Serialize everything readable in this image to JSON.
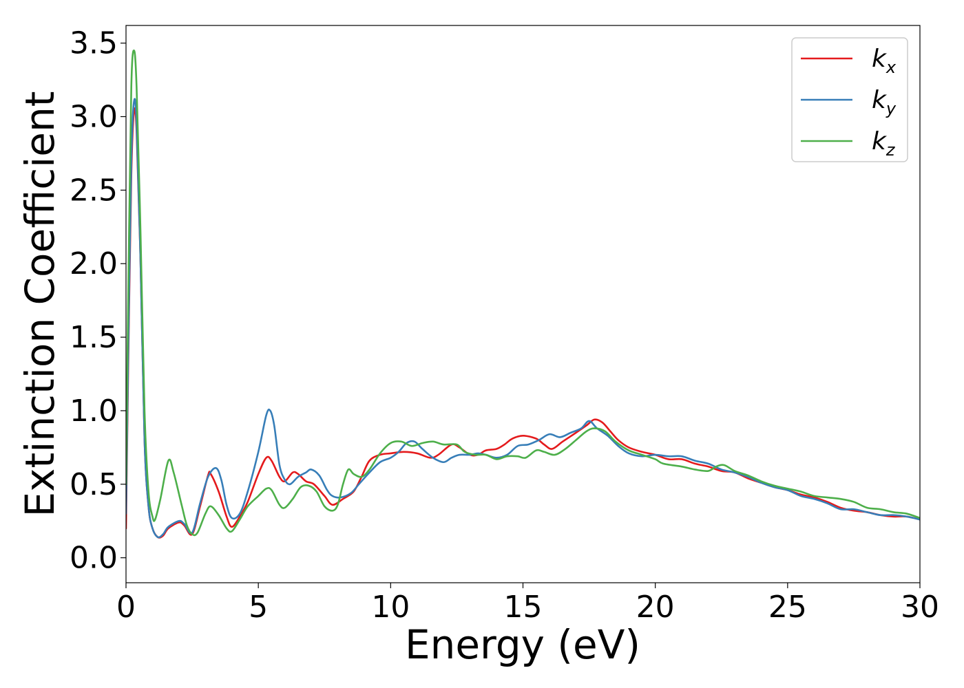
{
  "chart_data": {
    "type": "line",
    "title": "",
    "xlabel": "Energy (eV)",
    "ylabel": "Extinction Coefficient",
    "xlim": [
      0,
      30
    ],
    "ylim": [
      -0.17,
      3.62
    ],
    "xticks": [
      0,
      5,
      10,
      15,
      20,
      25,
      30
    ],
    "xtick_labels": [
      "0",
      "5",
      "10",
      "15",
      "20",
      "25",
      "30"
    ],
    "yticks": [
      0.0,
      0.5,
      1.0,
      1.5,
      2.0,
      2.5,
      3.0,
      3.5
    ],
    "ytick_labels": [
      "0.0",
      "0.5",
      "1.0",
      "1.5",
      "2.0",
      "2.5",
      "3.0",
      "3.5"
    ],
    "grid": false,
    "legend_position": "top-right",
    "series": [
      {
        "name": "k",
        "subscript": "x",
        "color": "#e41a1c",
        "points": [
          [
            0,
            0.2
          ],
          [
            0.1,
            1.5
          ],
          [
            0.2,
            2.6
          ],
          [
            0.3,
            3.03
          ],
          [
            0.4,
            2.9
          ],
          [
            0.55,
            2.0
          ],
          [
            0.7,
            0.8
          ],
          [
            0.85,
            0.35
          ],
          [
            1.0,
            0.2
          ],
          [
            1.2,
            0.14
          ],
          [
            1.4,
            0.15
          ],
          [
            1.6,
            0.2
          ],
          [
            2.0,
            0.24
          ],
          [
            2.2,
            0.22
          ],
          [
            2.5,
            0.16
          ],
          [
            2.8,
            0.35
          ],
          [
            3.1,
            0.56
          ],
          [
            3.2,
            0.57
          ],
          [
            3.5,
            0.45
          ],
          [
            3.8,
            0.28
          ],
          [
            4.0,
            0.21
          ],
          [
            4.3,
            0.28
          ],
          [
            4.6,
            0.38
          ],
          [
            5.0,
            0.57
          ],
          [
            5.3,
            0.68
          ],
          [
            5.5,
            0.66
          ],
          [
            5.8,
            0.55
          ],
          [
            6.0,
            0.52
          ],
          [
            6.3,
            0.58
          ],
          [
            6.5,
            0.57
          ],
          [
            6.8,
            0.52
          ],
          [
            7.1,
            0.5
          ],
          [
            7.5,
            0.42
          ],
          [
            7.8,
            0.36
          ],
          [
            8.2,
            0.4
          ],
          [
            8.6,
            0.45
          ],
          [
            8.9,
            0.55
          ],
          [
            9.2,
            0.66
          ],
          [
            9.6,
            0.7
          ],
          [
            10.0,
            0.71
          ],
          [
            10.5,
            0.72
          ],
          [
            11.0,
            0.71
          ],
          [
            11.5,
            0.68
          ],
          [
            11.8,
            0.7
          ],
          [
            12.3,
            0.77
          ],
          [
            12.6,
            0.75
          ],
          [
            13.0,
            0.7
          ],
          [
            13.3,
            0.7
          ],
          [
            13.6,
            0.73
          ],
          [
            14.0,
            0.74
          ],
          [
            14.3,
            0.77
          ],
          [
            14.6,
            0.81
          ],
          [
            15.0,
            0.83
          ],
          [
            15.5,
            0.81
          ],
          [
            15.8,
            0.77
          ],
          [
            16.1,
            0.74
          ],
          [
            16.5,
            0.79
          ],
          [
            17.0,
            0.85
          ],
          [
            17.4,
            0.9
          ],
          [
            17.7,
            0.94
          ],
          [
            18.0,
            0.92
          ],
          [
            18.3,
            0.86
          ],
          [
            18.6,
            0.8
          ],
          [
            19.0,
            0.75
          ],
          [
            19.5,
            0.72
          ],
          [
            20.0,
            0.7
          ],
          [
            20.5,
            0.67
          ],
          [
            21.0,
            0.67
          ],
          [
            21.5,
            0.64
          ],
          [
            22.0,
            0.62
          ],
          [
            22.5,
            0.59
          ],
          [
            23.0,
            0.58
          ],
          [
            23.5,
            0.54
          ],
          [
            24.0,
            0.51
          ],
          [
            24.5,
            0.48
          ],
          [
            25.0,
            0.46
          ],
          [
            25.5,
            0.43
          ],
          [
            26.0,
            0.41
          ],
          [
            26.5,
            0.38
          ],
          [
            27.0,
            0.34
          ],
          [
            27.5,
            0.32
          ],
          [
            28.0,
            0.31
          ],
          [
            28.5,
            0.29
          ],
          [
            29.0,
            0.28
          ],
          [
            29.5,
            0.28
          ],
          [
            30.0,
            0.26
          ]
        ]
      },
      {
        "name": "k",
        "subscript": "y",
        "color": "#377eb8",
        "points": [
          [
            0,
            0.3
          ],
          [
            0.1,
            1.6
          ],
          [
            0.2,
            2.7
          ],
          [
            0.3,
            3.1
          ],
          [
            0.4,
            2.95
          ],
          [
            0.55,
            2.0
          ],
          [
            0.7,
            0.8
          ],
          [
            0.85,
            0.35
          ],
          [
            1.0,
            0.2
          ],
          [
            1.2,
            0.14
          ],
          [
            1.4,
            0.16
          ],
          [
            1.6,
            0.21
          ],
          [
            2.0,
            0.25
          ],
          [
            2.2,
            0.23
          ],
          [
            2.5,
            0.17
          ],
          [
            2.8,
            0.37
          ],
          [
            3.1,
            0.55
          ],
          [
            3.4,
            0.61
          ],
          [
            3.6,
            0.53
          ],
          [
            3.8,
            0.36
          ],
          [
            4.0,
            0.27
          ],
          [
            4.3,
            0.3
          ],
          [
            4.6,
            0.45
          ],
          [
            5.0,
            0.72
          ],
          [
            5.3,
            0.97
          ],
          [
            5.45,
            1.0
          ],
          [
            5.6,
            0.9
          ],
          [
            5.8,
            0.63
          ],
          [
            6.0,
            0.53
          ],
          [
            6.2,
            0.5
          ],
          [
            6.5,
            0.55
          ],
          [
            6.8,
            0.58
          ],
          [
            7.0,
            0.6
          ],
          [
            7.3,
            0.56
          ],
          [
            7.6,
            0.46
          ],
          [
            7.8,
            0.42
          ],
          [
            8.1,
            0.41
          ],
          [
            8.5,
            0.44
          ],
          [
            8.8,
            0.5
          ],
          [
            9.2,
            0.58
          ],
          [
            9.6,
            0.65
          ],
          [
            10.0,
            0.68
          ],
          [
            10.3,
            0.72
          ],
          [
            10.6,
            0.78
          ],
          [
            10.9,
            0.79
          ],
          [
            11.2,
            0.74
          ],
          [
            11.6,
            0.68
          ],
          [
            12.0,
            0.65
          ],
          [
            12.3,
            0.68
          ],
          [
            12.6,
            0.7
          ],
          [
            13.0,
            0.7
          ],
          [
            13.3,
            0.71
          ],
          [
            13.6,
            0.7
          ],
          [
            14.0,
            0.68
          ],
          [
            14.4,
            0.7
          ],
          [
            14.8,
            0.76
          ],
          [
            15.2,
            0.77
          ],
          [
            15.6,
            0.8
          ],
          [
            16.0,
            0.84
          ],
          [
            16.4,
            0.82
          ],
          [
            16.8,
            0.85
          ],
          [
            17.2,
            0.88
          ],
          [
            17.5,
            0.93
          ],
          [
            17.8,
            0.88
          ],
          [
            18.2,
            0.83
          ],
          [
            18.6,
            0.76
          ],
          [
            19.0,
            0.71
          ],
          [
            19.5,
            0.69
          ],
          [
            20.0,
            0.7
          ],
          [
            20.5,
            0.69
          ],
          [
            21.0,
            0.69
          ],
          [
            21.5,
            0.66
          ],
          [
            22.0,
            0.64
          ],
          [
            22.5,
            0.6
          ],
          [
            23.0,
            0.58
          ],
          [
            23.5,
            0.55
          ],
          [
            24.0,
            0.51
          ],
          [
            24.5,
            0.48
          ],
          [
            25.0,
            0.46
          ],
          [
            25.5,
            0.42
          ],
          [
            26.0,
            0.4
          ],
          [
            26.5,
            0.37
          ],
          [
            27.0,
            0.33
          ],
          [
            27.5,
            0.33
          ],
          [
            28.0,
            0.31
          ],
          [
            28.5,
            0.29
          ],
          [
            29.0,
            0.29
          ],
          [
            29.5,
            0.28
          ],
          [
            30.0,
            0.26
          ]
        ]
      },
      {
        "name": "k",
        "subscript": "z",
        "color": "#4daf4a",
        "points": [
          [
            0,
            0.5
          ],
          [
            0.1,
            2.0
          ],
          [
            0.2,
            3.2
          ],
          [
            0.3,
            3.45
          ],
          [
            0.4,
            3.2
          ],
          [
            0.55,
            2.2
          ],
          [
            0.7,
            1.0
          ],
          [
            0.85,
            0.45
          ],
          [
            1.0,
            0.28
          ],
          [
            1.1,
            0.26
          ],
          [
            1.3,
            0.4
          ],
          [
            1.6,
            0.66
          ],
          [
            1.8,
            0.58
          ],
          [
            2.1,
            0.36
          ],
          [
            2.3,
            0.22
          ],
          [
            2.5,
            0.16
          ],
          [
            2.7,
            0.17
          ],
          [
            3.0,
            0.3
          ],
          [
            3.2,
            0.35
          ],
          [
            3.5,
            0.29
          ],
          [
            3.8,
            0.2
          ],
          [
            4.0,
            0.18
          ],
          [
            4.3,
            0.26
          ],
          [
            4.6,
            0.35
          ],
          [
            5.0,
            0.42
          ],
          [
            5.3,
            0.47
          ],
          [
            5.5,
            0.46
          ],
          [
            5.8,
            0.36
          ],
          [
            6.0,
            0.34
          ],
          [
            6.3,
            0.4
          ],
          [
            6.6,
            0.48
          ],
          [
            6.9,
            0.49
          ],
          [
            7.2,
            0.45
          ],
          [
            7.5,
            0.35
          ],
          [
            7.8,
            0.32
          ],
          [
            8.0,
            0.36
          ],
          [
            8.2,
            0.5
          ],
          [
            8.4,
            0.6
          ],
          [
            8.6,
            0.57
          ],
          [
            8.9,
            0.55
          ],
          [
            9.2,
            0.6
          ],
          [
            9.6,
            0.71
          ],
          [
            10.0,
            0.78
          ],
          [
            10.4,
            0.79
          ],
          [
            10.8,
            0.76
          ],
          [
            11.2,
            0.78
          ],
          [
            11.6,
            0.79
          ],
          [
            12.0,
            0.77
          ],
          [
            12.5,
            0.77
          ],
          [
            12.8,
            0.72
          ],
          [
            13.2,
            0.7
          ],
          [
            13.6,
            0.7
          ],
          [
            14.0,
            0.67
          ],
          [
            14.4,
            0.69
          ],
          [
            14.8,
            0.69
          ],
          [
            15.1,
            0.68
          ],
          [
            15.5,
            0.73
          ],
          [
            15.8,
            0.72
          ],
          [
            16.2,
            0.7
          ],
          [
            16.6,
            0.74
          ],
          [
            17.0,
            0.8
          ],
          [
            17.4,
            0.86
          ],
          [
            17.7,
            0.88
          ],
          [
            18.1,
            0.86
          ],
          [
            18.5,
            0.79
          ],
          [
            19.0,
            0.73
          ],
          [
            19.5,
            0.7
          ],
          [
            20.0,
            0.67
          ],
          [
            20.3,
            0.64
          ],
          [
            21.0,
            0.62
          ],
          [
            21.5,
            0.6
          ],
          [
            22.0,
            0.59
          ],
          [
            22.3,
            0.62
          ],
          [
            22.6,
            0.63
          ],
          [
            23.0,
            0.59
          ],
          [
            23.5,
            0.56
          ],
          [
            24.0,
            0.52
          ],
          [
            24.5,
            0.49
          ],
          [
            25.0,
            0.47
          ],
          [
            25.5,
            0.45
          ],
          [
            26.0,
            0.42
          ],
          [
            26.5,
            0.41
          ],
          [
            27.0,
            0.4
          ],
          [
            27.5,
            0.38
          ],
          [
            28.0,
            0.34
          ],
          [
            28.5,
            0.33
          ],
          [
            29.0,
            0.31
          ],
          [
            29.5,
            0.3
          ],
          [
            30.0,
            0.27
          ]
        ]
      }
    ]
  }
}
